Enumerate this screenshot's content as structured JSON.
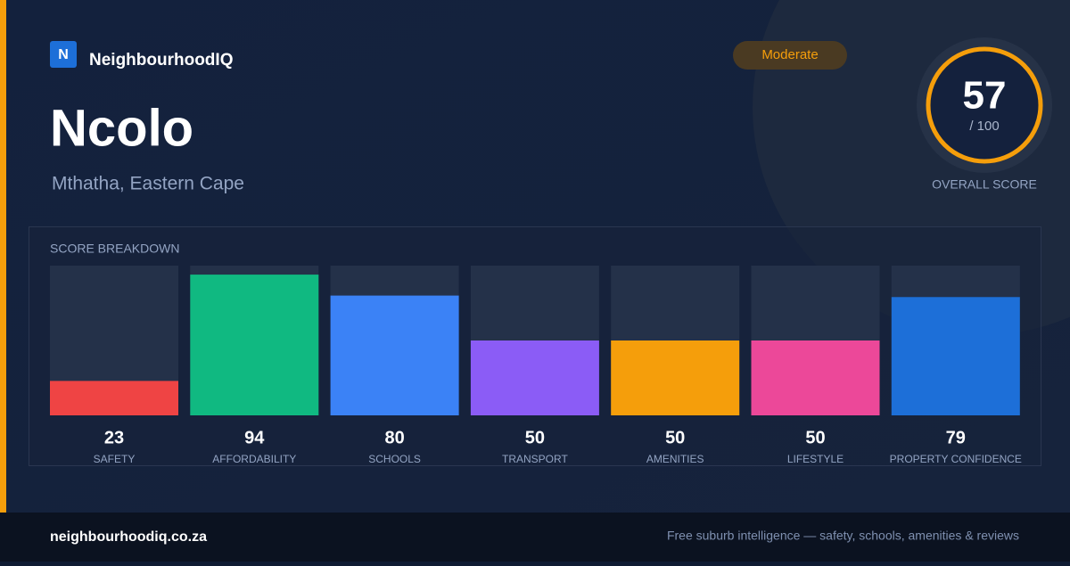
{
  "brand": {
    "logo": "N",
    "name": "NeighbourhoodIQ"
  },
  "title": "Ncolo",
  "subtitle": "Mthatha, Eastern Cape",
  "badge": "Moderate",
  "score": {
    "value": 57,
    "max": {
      "value": 100,
      "label": "/ 100"
    },
    "caption": "OVERALL SCORE"
  },
  "chart_data": {
    "type": "bar",
    "title": "SCORE BREAKDOWN",
    "categories": [
      "SAFETY",
      "AFFORDABILITY",
      "SCHOOLS",
      "TRANSPORT",
      "AMENITIES",
      "LIFESTYLE",
      "PROPERTY CONFIDENCE"
    ],
    "values": [
      23,
      94,
      80,
      50,
      50,
      50,
      79
    ],
    "colors": [
      "#ef4444",
      "#10b981",
      "#3b82f6",
      "#8b5cf6",
      "#f59e0b",
      "#ec4899",
      "#1d6fd8"
    ],
    "ylim": [
      0,
      100
    ]
  },
  "footer": {
    "url": "neighbourhoodiq.co.za",
    "tagline": "Free suburb intelligence — safety, schools, amenities & reviews"
  }
}
